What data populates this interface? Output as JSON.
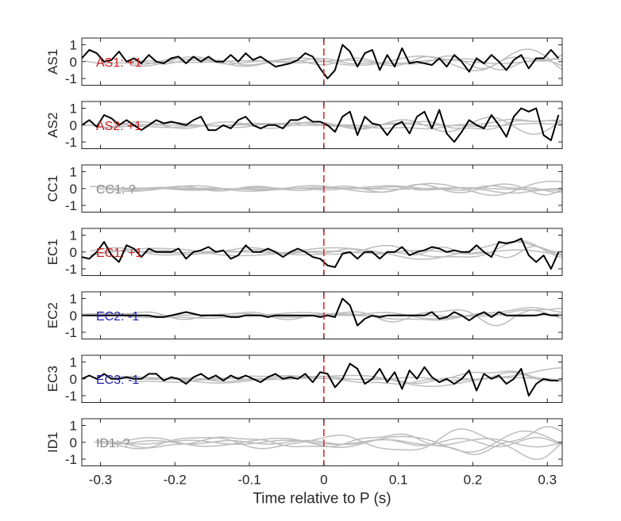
{
  "chart_data": {
    "type": "line",
    "xlabel": "Time relative to P (s)",
    "xlim": [
      -0.325,
      0.32
    ],
    "x_ticks": [
      -0.3,
      -0.2,
      -0.1,
      0,
      0.1,
      0.2,
      0.3
    ],
    "x_tick_labels": [
      "-0.3",
      "-0.2",
      "-0.1",
      "0",
      "0.1",
      "0.2",
      "0.3"
    ],
    "ylim": [
      -1.4,
      1.4
    ],
    "y_ticks": [
      1,
      0,
      -1
    ],
    "y_tick_labels": [
      "1",
      "0",
      "-1"
    ],
    "marker_x": 0,
    "marker_color": "#e02020",
    "trace_color": "#000000",
    "background_trace_color": "#bdbdbd",
    "polarity_colors": {
      "+1": "#cc1f1f",
      "-1": "#1f1fb0",
      "?": "#8a8a8a"
    },
    "panels": [
      {
        "ylabel": "AS1",
        "annotation": "AS1: +1",
        "polarity": "+1",
        "trace_x": [
          -0.325,
          -0.315,
          -0.305,
          -0.295,
          -0.285,
          -0.275,
          -0.265,
          -0.255,
          -0.245,
          -0.235,
          -0.225,
          -0.215,
          -0.205,
          -0.195,
          -0.185,
          -0.175,
          -0.165,
          -0.155,
          -0.145,
          -0.135,
          -0.125,
          -0.115,
          -0.105,
          -0.095,
          -0.085,
          -0.075,
          -0.065,
          -0.055,
          -0.045,
          -0.035,
          -0.025,
          -0.015,
          -0.005,
          0.005,
          0.015,
          0.025,
          0.035,
          0.045,
          0.055,
          0.065,
          0.075,
          0.085,
          0.095,
          0.105,
          0.115,
          0.125,
          0.135,
          0.145,
          0.155,
          0.165,
          0.175,
          0.185,
          0.195,
          0.205,
          0.215,
          0.225,
          0.235,
          0.245,
          0.255,
          0.265,
          0.275,
          0.285,
          0.295,
          0.305,
          0.315
        ],
        "trace_y": [
          0.2,
          0.7,
          0.5,
          0.0,
          0.1,
          0.6,
          0.0,
          0.2,
          -0.1,
          0.4,
          0.0,
          -0.1,
          0.2,
          0.3,
          -0.1,
          0.3,
          0.0,
          0.3,
          0.0,
          0.0,
          0.4,
          0.0,
          0.5,
          0.1,
          0.3,
          0.0,
          -0.3,
          -0.2,
          -0.1,
          0.1,
          0.5,
          0.3,
          -0.4,
          -1.0,
          -0.5,
          1.0,
          0.6,
          -0.3,
          0.5,
          0.7,
          -0.5,
          0.4,
          -0.3,
          0.8,
          -0.1,
          0.0,
          -0.1,
          -0.2,
          0.2,
          -0.3,
          0.4,
          0.0,
          -0.6,
          0.2,
          -0.1,
          0.4,
          0.0,
          -0.5,
          0.1,
          0.4,
          -0.4,
          0.2,
          0.2,
          0.7,
          0.2
        ]
      },
      {
        "ylabel": "AS2",
        "annotation": "AS2: +1",
        "polarity": "+1",
        "trace_x": [
          -0.325,
          -0.315,
          -0.305,
          -0.295,
          -0.285,
          -0.275,
          -0.265,
          -0.255,
          -0.245,
          -0.235,
          -0.225,
          -0.215,
          -0.205,
          -0.195,
          -0.185,
          -0.175,
          -0.165,
          -0.155,
          -0.145,
          -0.135,
          -0.125,
          -0.115,
          -0.105,
          -0.095,
          -0.085,
          -0.075,
          -0.065,
          -0.055,
          -0.045,
          -0.035,
          -0.025,
          -0.015,
          -0.005,
          0.005,
          0.015,
          0.025,
          0.035,
          0.045,
          0.055,
          0.065,
          0.075,
          0.085,
          0.095,
          0.105,
          0.115,
          0.125,
          0.135,
          0.145,
          0.155,
          0.165,
          0.175,
          0.185,
          0.195,
          0.205,
          0.215,
          0.225,
          0.235,
          0.245,
          0.255,
          0.265,
          0.275,
          0.285,
          0.295,
          0.305,
          0.315
        ],
        "trace_y": [
          0.0,
          0.3,
          -0.1,
          0.6,
          0.4,
          0.0,
          0.3,
          0.0,
          -0.3,
          0.0,
          0.3,
          0.1,
          0.2,
          0.1,
          0.0,
          0.3,
          0.5,
          -0.3,
          -0.3,
          0.0,
          -0.2,
          0.3,
          0.5,
          0.0,
          -0.2,
          0.0,
          0.0,
          -0.2,
          0.3,
          0.3,
          0.5,
          0.2,
          0.2,
          0.0,
          -0.4,
          0.5,
          0.8,
          -0.6,
          0.5,
          0.1,
          0.0,
          -0.6,
          0.0,
          0.2,
          -0.5,
          0.5,
          0.8,
          -0.2,
          0.9,
          -0.5,
          -1.0,
          -0.4,
          0.3,
          0.0,
          -0.2,
          0.6,
          0.0,
          -0.7,
          0.5,
          1.0,
          0.8,
          1.0,
          -0.6,
          -0.9,
          0.6
        ]
      },
      {
        "ylabel": "CC1",
        "annotation": "CC1: ?",
        "polarity": "?",
        "trace_x": [],
        "trace_y": []
      },
      {
        "ylabel": "EC1",
        "annotation": "EC1: +1",
        "polarity": "+1",
        "trace_x": [
          -0.325,
          -0.315,
          -0.305,
          -0.295,
          -0.285,
          -0.275,
          -0.265,
          -0.255,
          -0.245,
          -0.235,
          -0.225,
          -0.215,
          -0.205,
          -0.195,
          -0.185,
          -0.175,
          -0.165,
          -0.155,
          -0.145,
          -0.135,
          -0.125,
          -0.115,
          -0.105,
          -0.095,
          -0.085,
          -0.075,
          -0.065,
          -0.055,
          -0.045,
          -0.035,
          -0.025,
          -0.015,
          -0.005,
          0.005,
          0.015,
          0.025,
          0.035,
          0.045,
          0.055,
          0.065,
          0.075,
          0.085,
          0.095,
          0.105,
          0.115,
          0.125,
          0.135,
          0.145,
          0.155,
          0.165,
          0.175,
          0.185,
          0.195,
          0.205,
          0.215,
          0.225,
          0.235,
          0.245,
          0.255,
          0.265,
          0.275,
          0.285,
          0.295,
          0.305,
          0.315
        ],
        "trace_y": [
          -0.3,
          -0.4,
          0.0,
          0.6,
          -0.2,
          -0.6,
          0.4,
          0.2,
          -0.3,
          0.2,
          0.0,
          0.0,
          0.0,
          0.2,
          -0.4,
          0.0,
          0.1,
          0.3,
          0.0,
          0.1,
          -0.4,
          -0.2,
          0.4,
          0.0,
          0.0,
          0.2,
          0.0,
          -0.3,
          0.0,
          0.2,
          0.0,
          -0.3,
          -0.4,
          -0.8,
          -0.9,
          -0.1,
          0.0,
          -0.4,
          0.0,
          0.0,
          -0.4,
          0.0,
          0.0,
          0.3,
          -0.2,
          0.0,
          0.1,
          0.3,
          0.2,
          0.0,
          0.1,
          0.0,
          0.0,
          0.4,
          0.0,
          -0.3,
          0.6,
          0.5,
          0.6,
          0.8,
          -0.2,
          -0.6,
          -0.2,
          -1.0,
          0.0
        ]
      },
      {
        "ylabel": "EC2",
        "annotation": "EC2: -1",
        "polarity": "-1",
        "trace_x": [
          -0.325,
          -0.315,
          -0.305,
          -0.295,
          -0.285,
          -0.275,
          -0.265,
          -0.255,
          -0.245,
          -0.235,
          -0.225,
          -0.215,
          -0.205,
          -0.195,
          -0.185,
          -0.175,
          -0.165,
          -0.155,
          -0.145,
          -0.135,
          -0.125,
          -0.115,
          -0.105,
          -0.095,
          -0.085,
          -0.075,
          -0.065,
          -0.055,
          -0.045,
          -0.035,
          -0.025,
          -0.015,
          -0.005,
          0.005,
          0.015,
          0.025,
          0.035,
          0.045,
          0.055,
          0.065,
          0.075,
          0.085,
          0.095,
          0.105,
          0.115,
          0.125,
          0.135,
          0.145,
          0.155,
          0.165,
          0.175,
          0.185,
          0.195,
          0.205,
          0.215,
          0.225,
          0.235,
          0.245,
          0.255,
          0.265,
          0.275,
          0.285,
          0.295,
          0.305,
          0.315
        ],
        "trace_y": [
          0.0,
          0.0,
          0.0,
          0.0,
          0.0,
          0.0,
          0.0,
          0.0,
          0.0,
          0.0,
          -0.1,
          -0.1,
          0.0,
          0.1,
          0.2,
          0.1,
          0.0,
          0.0,
          0.0,
          0.0,
          -0.1,
          -0.1,
          0.0,
          0.0,
          0.0,
          -0.1,
          0.0,
          0.0,
          0.0,
          0.0,
          0.0,
          0.0,
          -0.1,
          0.0,
          -0.1,
          1.0,
          0.6,
          -0.6,
          -0.2,
          0.0,
          -0.1,
          0.0,
          0.0,
          0.0,
          0.0,
          0.0,
          0.0,
          0.2,
          -0.2,
          -0.1,
          0.2,
          0.0,
          -0.3,
          0.0,
          0.2,
          -0.1,
          0.2,
          0.0,
          0.0,
          0.0,
          0.0,
          0.0,
          0.1,
          0.0,
          0.0
        ]
      },
      {
        "ylabel": "EC3",
        "annotation": "EC3: -1",
        "polarity": "-1",
        "trace_x": [
          -0.325,
          -0.315,
          -0.305,
          -0.295,
          -0.285,
          -0.275,
          -0.265,
          -0.255,
          -0.245,
          -0.235,
          -0.225,
          -0.215,
          -0.205,
          -0.195,
          -0.185,
          -0.175,
          -0.165,
          -0.155,
          -0.145,
          -0.135,
          -0.125,
          -0.115,
          -0.105,
          -0.095,
          -0.085,
          -0.075,
          -0.065,
          -0.055,
          -0.045,
          -0.035,
          -0.025,
          -0.015,
          -0.005,
          0.005,
          0.015,
          0.025,
          0.035,
          0.045,
          0.055,
          0.065,
          0.075,
          0.085,
          0.095,
          0.105,
          0.115,
          0.125,
          0.135,
          0.145,
          0.155,
          0.165,
          0.175,
          0.185,
          0.195,
          0.205,
          0.215,
          0.225,
          0.235,
          0.245,
          0.255,
          0.265,
          0.275,
          0.285,
          0.295,
          0.305,
          0.315
        ],
        "trace_y": [
          0.0,
          0.2,
          0.0,
          0.3,
          0.0,
          0.0,
          0.1,
          0.0,
          0.0,
          0.3,
          0.3,
          -0.1,
          0.1,
          0.0,
          -0.3,
          0.1,
          0.3,
          0.0,
          0.2,
          -0.1,
          0.2,
          0.0,
          0.2,
          0.0,
          -0.2,
          0.1,
          0.3,
          0.0,
          0.1,
          0.0,
          0.3,
          -0.2,
          0.4,
          0.3,
          -0.5,
          0.0,
          0.9,
          0.6,
          -0.3,
          0.0,
          0.6,
          -0.2,
          0.4,
          -0.6,
          0.5,
          0.0,
          0.7,
          0.1,
          -0.2,
          0.0,
          -0.3,
          0.0,
          0.5,
          -0.7,
          0.3,
          0.0,
          0.2,
          -0.3,
          0.0,
          0.6,
          -1.0,
          -0.3,
          0.0,
          -0.1,
          -0.1
        ]
      },
      {
        "ylabel": "ID1",
        "annotation": "ID1: ?",
        "polarity": "?",
        "trace_x": [],
        "trace_y": []
      }
    ]
  }
}
